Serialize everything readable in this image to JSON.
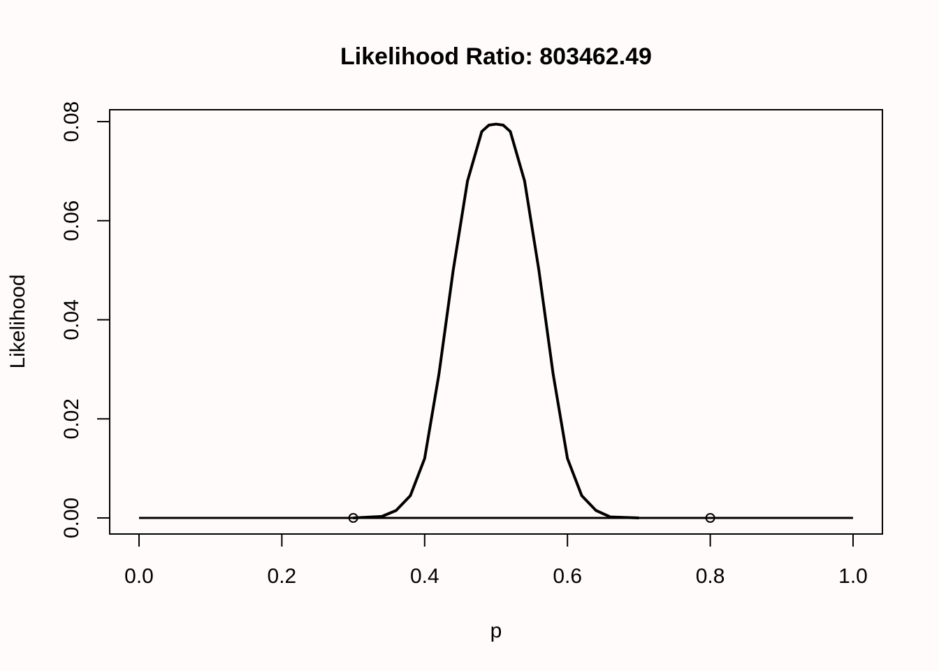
{
  "chart_data": {
    "type": "line",
    "title": "Likelihood Ratio: 803462.49",
    "xlabel": "p",
    "ylabel": "Likelihood",
    "xlim": [
      0,
      1
    ],
    "ylim": [
      0,
      0.08
    ],
    "x_ticks": [
      "0.0",
      "0.2",
      "0.4",
      "0.6",
      "0.8",
      "1.0"
    ],
    "y_ticks": [
      "0.00",
      "0.02",
      "0.04",
      "0.06",
      "0.08"
    ],
    "grid": false,
    "series": [
      {
        "style": "solid",
        "x": [
          0.3,
          0.34,
          0.36,
          0.38,
          0.4,
          0.42,
          0.44,
          0.46,
          0.48,
          0.49,
          0.5,
          0.51,
          0.52,
          0.54,
          0.56,
          0.58,
          0.6,
          0.62,
          0.64,
          0.66,
          0.7
        ],
        "y": [
          0.0,
          0.0003,
          0.0015,
          0.0045,
          0.012,
          0.029,
          0.05,
          0.068,
          0.078,
          0.0793,
          0.0795,
          0.0793,
          0.078,
          0.068,
          0.05,
          0.029,
          0.012,
          0.0045,
          0.0015,
          0.0002,
          0.0
        ]
      },
      {
        "style": "dashed",
        "x": [
          0.3,
          0.66
        ],
        "y": [
          0.0,
          0.0
        ]
      }
    ],
    "points": [
      {
        "x": 0.3,
        "y": 0.0
      },
      {
        "x": 0.8,
        "y": 0.0
      }
    ]
  }
}
